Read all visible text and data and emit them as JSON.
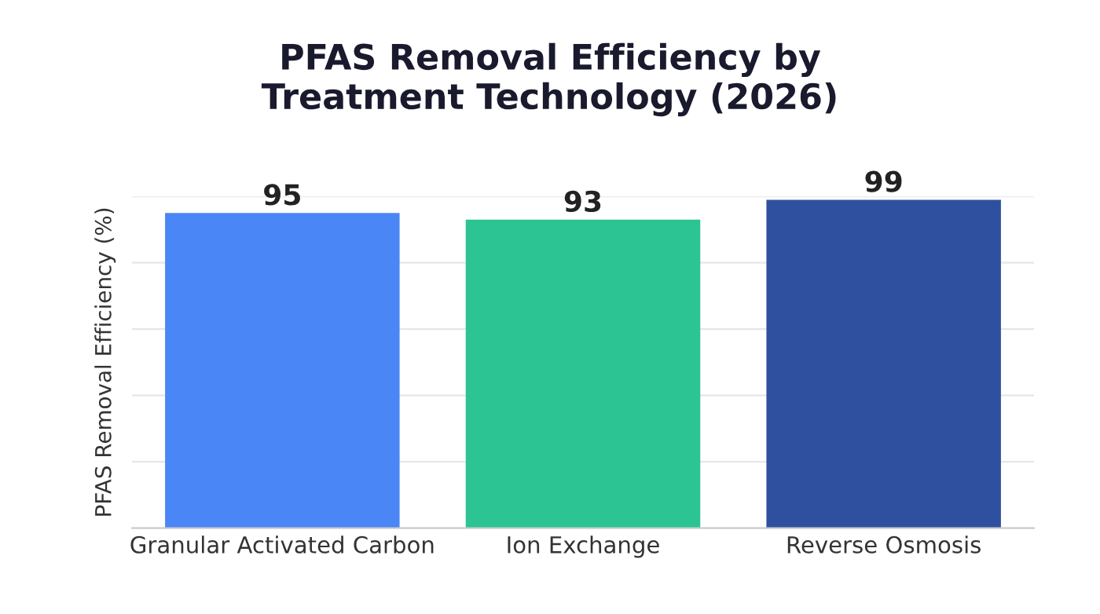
{
  "chart_data": {
    "type": "bar",
    "title": "PFAS Removal Efficiency by\nTreatment Technology (2026)",
    "ylabel": "PFAS Removal Efficiency (%)",
    "categories": [
      "Granular Activated Carbon",
      "Ion Exchange",
      "Reverse Osmosis"
    ],
    "values": [
      95,
      93,
      99
    ],
    "colors": [
      "#4a86f5",
      "#2bc492",
      "#2f509e"
    ],
    "ylim": [
      0,
      100
    ],
    "yticks": [
      {
        "value": 0,
        "label": null
      },
      {
        "value": 20,
        "label": null
      },
      {
        "value": 40,
        "label": null
      },
      {
        "value": 60,
        "label": null
      },
      {
        "value": 80,
        "label": null
      },
      {
        "value": 100,
        "label": null
      }
    ],
    "grid": "y",
    "data_labels": true,
    "legend": false
  }
}
